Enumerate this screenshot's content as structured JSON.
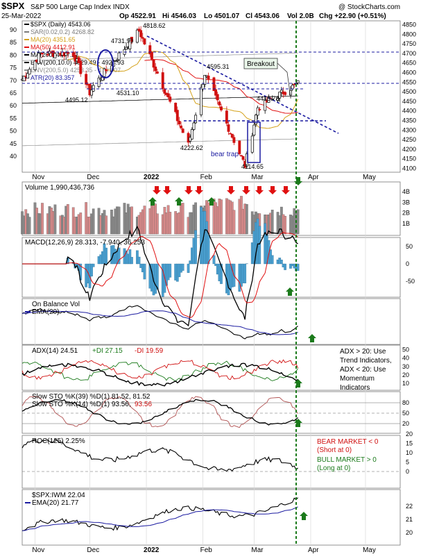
{
  "header": {
    "symbol": "$SPX",
    "description": "S&P 500 Large Cap Index  INDX",
    "watermark": "@ StockCharts.com",
    "date": "25-Mar-2022",
    "open": "Op 4522.91",
    "high": "Hi 4546.03",
    "low": "Lo 4501.07",
    "close": "Cl 4543.06",
    "volume": "Vol 2.0B",
    "change": "Chg +22.90 (+0.51%)"
  },
  "price_legend": [
    {
      "text": "$SPX (Daily) 4543.06",
      "color": "#000000"
    },
    {
      "text": "SAR(0.02,0.2) 4268.82",
      "color": "#7a7a7a"
    },
    {
      "text": "MA(20) 4351.65",
      "color": "#d4a017"
    },
    {
      "text": "MA(50) 4412.91",
      "color": "#e01010"
    },
    {
      "text": "MA(200) 4477.21",
      "color": "#000000"
    },
    {
      "text": "ENV(200,10.0) 4029.49 - 4924.93",
      "color": "#000000"
    },
    {
      "text": "ENV(200,5.0) 4253.35 - 4701.07",
      "color": "#8c8c8c"
    },
    {
      "text": "ATR(20) 83.357",
      "color": "#1a1aa0"
    }
  ],
  "price_annotations": {
    "breakout": "Breakout",
    "bear_trap": "bear trap",
    "levels": [
      "4818.62",
      "4731.99",
      "4595.31",
      "4531.10",
      "4495.12",
      "4418.78",
      "4222.62",
      "4114.65"
    ]
  },
  "axes": {
    "x_ticks": [
      "Nov",
      "Dec",
      "2022",
      "Feb",
      "Mar",
      "Apr",
      "May"
    ],
    "price_right": [
      "4850",
      "4800",
      "4750",
      "4700",
      "4650",
      "4600",
      "4550",
      "4500",
      "4450",
      "4400",
      "4350",
      "4300",
      "4250",
      "4200",
      "4150",
      "4100"
    ],
    "atr_left": [
      "90",
      "85",
      "80",
      "75",
      "70",
      "65",
      "60",
      "55",
      "50",
      "45",
      "40"
    ],
    "volume_right": [
      "4B",
      "3B",
      "2B",
      "1B"
    ],
    "macd_right": [
      "50",
      "0",
      "-50"
    ],
    "adx_right": [
      "50",
      "40",
      "30",
      "20",
      "10"
    ],
    "sto_right": [
      "80",
      "50",
      "20"
    ],
    "roc_right": [
      "20",
      "15",
      "10",
      "5",
      "0"
    ],
    "ratio_right": [
      "22",
      "21",
      "20"
    ]
  },
  "panels": {
    "volume": {
      "label": "Volume 1,990,436,736"
    },
    "macd": {
      "label": "MACD(12,26,9) 28.313, -7.940, 36.253"
    },
    "obv": {
      "label": "On Balance Vol",
      "ema": "EMA(20)"
    },
    "adx": {
      "label": "ADX(14) 24.51",
      "plus_di": "+DI 27.15",
      "minus_di": "-DI 19.59",
      "note": [
        "ADX > 20: Use",
        "Trend Indicators,",
        "ADX < 20: Use",
        "Momentum",
        "Indicators"
      ]
    },
    "sto": {
      "line1": "Slow STO %K(39) %D(1) 81.52, 81.52",
      "line2a": "Slow STO %K(14) %D(1) 93.56,",
      "line2b": "93.56"
    },
    "roc": {
      "label": "ROC(125) 2.25%",
      "note_bear": [
        "BEAR MARKET < 0",
        "(Short at 0)"
      ],
      "note_bull": [
        "BULL MARKET > 0",
        "(Long at 0)"
      ]
    },
    "ratio": {
      "label": "$SPX:IWM 22.04",
      "ema": "EMA(20) 21.77"
    }
  },
  "chart_data": {
    "type": "candlestick",
    "title": "$SPX S&P 500 Large Cap Index INDX",
    "x_range": [
      "2021-10-25",
      "2022-05-20"
    ],
    "price_ylim": [
      4080,
      4870
    ],
    "price_key_points": [
      {
        "date": "2021-11-04",
        "value": 4700
      },
      {
        "date": "2021-11-22",
        "value": 4700
      },
      {
        "date": "2021-12-01",
        "value": 4495.12
      },
      {
        "date": "2021-12-03",
        "value": 4531.1
      },
      {
        "date": "2021-12-28",
        "value": 4818.62
      },
      {
        "date": "2022-01-24",
        "value": 4222.62
      },
      {
        "date": "2022-02-02",
        "value": 4595.31
      },
      {
        "date": "2022-02-24",
        "value": 4114.65
      },
      {
        "date": "2022-03-03",
        "value": 4418.78
      },
      {
        "date": "2022-03-25",
        "value": 4543.06
      }
    ],
    "volume_signals": {
      "down_arrows": 9,
      "up_arrows": 3
    },
    "macd": {
      "macd": 28.313,
      "signal": -7.94,
      "histogram": 36.253
    },
    "adx": {
      "adx": 24.51,
      "plus_di": 27.15,
      "minus_di": 19.59
    },
    "slow_sto": {
      "k39": 81.52,
      "d39": 81.52,
      "k14": 93.56,
      "d14": 93.56
    },
    "roc125": 2.25,
    "spx_iwm": {
      "ratio": 22.04,
      "ema20": 21.77
    }
  }
}
